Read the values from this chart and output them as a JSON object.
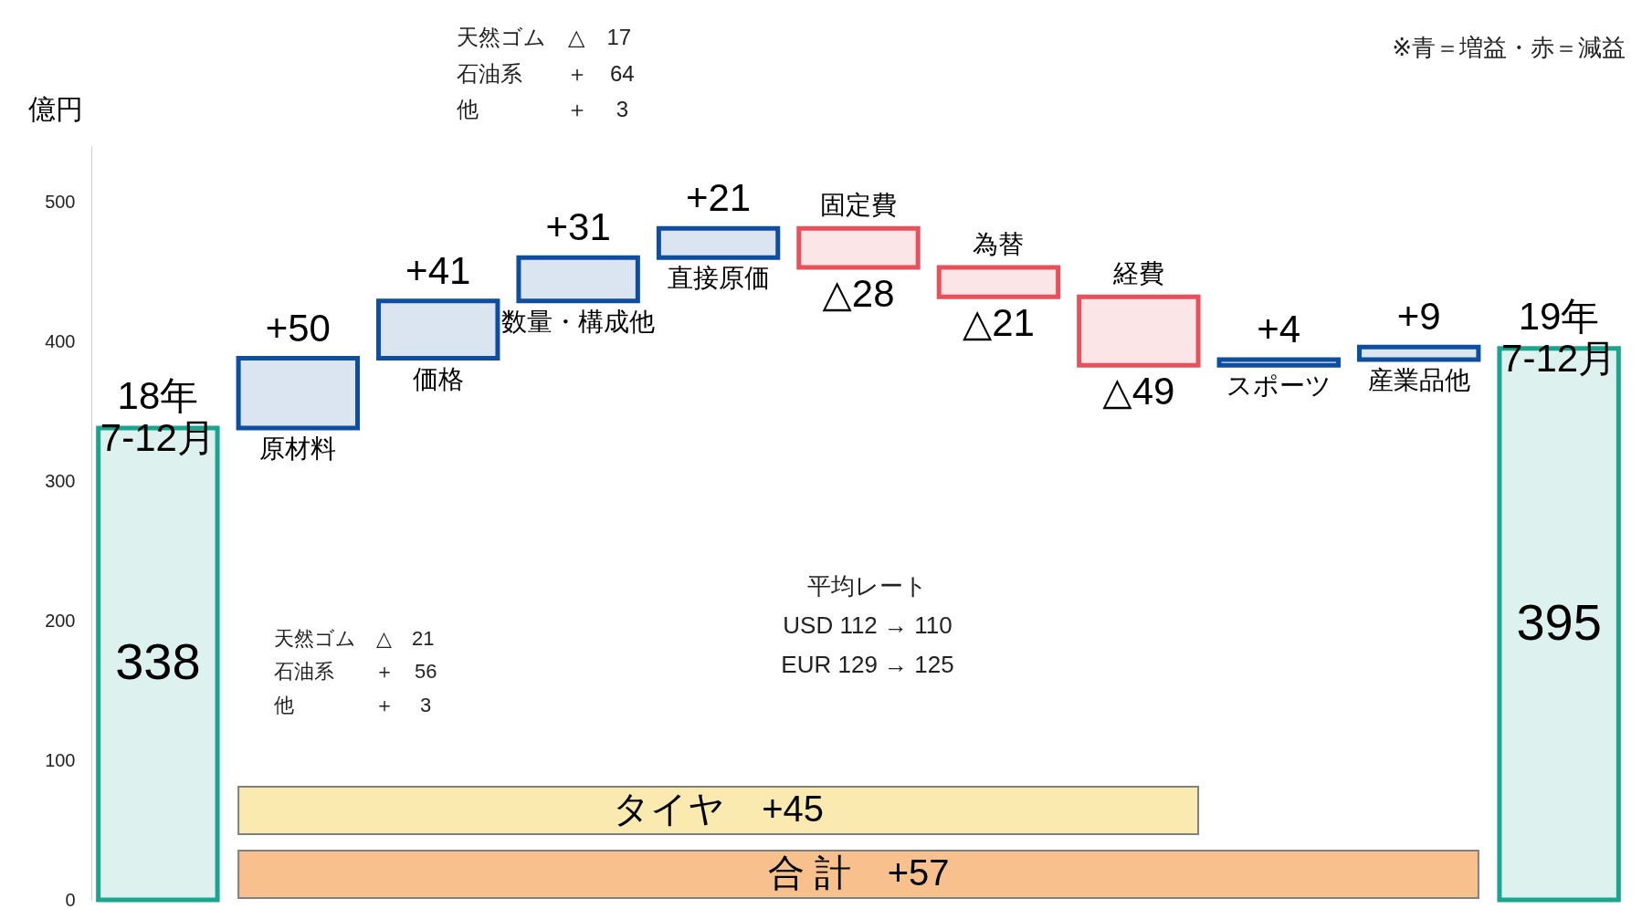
{
  "chart_data": {
    "type": "bar",
    "ylabel": "億円",
    "categories": [
      "18年 7-12月",
      "原材料",
      "価格",
      "数量・構成他",
      "直接原価",
      "固定費",
      "為替",
      "経費",
      "スポーツ",
      "産業品他",
      "19年 7-12月"
    ],
    "values": [
      338,
      50,
      41,
      31,
      21,
      -28,
      -21,
      -49,
      4,
      9,
      395
    ],
    "base": [
      0,
      338,
      388,
      429,
      460,
      481,
      453,
      432,
      383,
      387,
      0
    ],
    "colors": [
      "#1aa58f",
      "#0d4ea0",
      "#0d4ea0",
      "#0d4ea0",
      "#0d4ea0",
      "#e8515c",
      "#e8515c",
      "#e8515c",
      "#0d4ea0",
      "#0d4ea0",
      "#1aa58f"
    ],
    "value_labels": [
      "338",
      "+50",
      "+41",
      "+31",
      "+21",
      "△28",
      "△21",
      "△49",
      "+4",
      "+9",
      "395"
    ],
    "ylim": [
      0,
      540
    ],
    "yticks": [
      0,
      100,
      200,
      300,
      400,
      500
    ],
    "grid": false,
    "bands": [
      {
        "axis": "x",
        "from": "原材料",
        "to": "経費",
        "label": "タイヤ　+45",
        "color": "#fbeab0"
      },
      {
        "axis": "x",
        "from": "原材料",
        "to": "産業品他",
        "label": "合 計　+57",
        "color": "#f8c08c"
      }
    ],
    "annotations": [
      "※青＝増益・赤＝減益",
      "天然ゴム　△　17\n石油系　　＋　64\n他　　　　＋　 3",
      "天然ゴム　△　21\n石油系　　＋　56\n他　　　　＋　 3",
      "平均レート\nUSD 112 → 110\nEUR 129 → 125"
    ]
  }
}
